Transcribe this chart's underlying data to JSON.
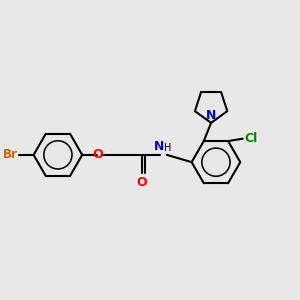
{
  "background_color": "#e8e8e8",
  "bond_color": "#000000",
  "bond_width": 1.5,
  "br_color": "#cc6600",
  "o_color": "#ff0000",
  "n_color": "#0000cc",
  "cl_color": "#008800",
  "figsize": [
    3.0,
    3.0
  ],
  "dpi": 100,
  "xlim": [
    0,
    12
  ],
  "ylim": [
    0,
    12
  ]
}
